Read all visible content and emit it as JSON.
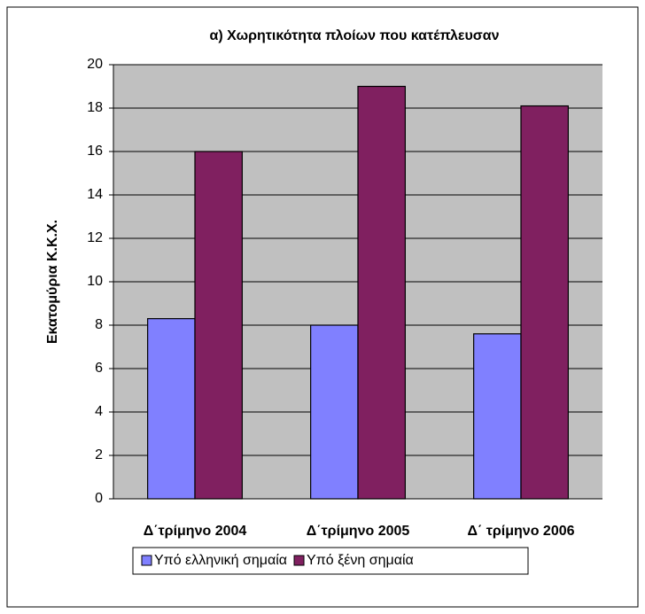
{
  "chart_data": {
    "type": "bar",
    "title": "α) Χωρητικότητα πλοίων που κατέπλευσαν",
    "y_label": "Εκατομύρια Κ.Κ.Χ.",
    "categories": [
      "Δ΄τρίμηνο  2004",
      "Δ΄τρίμηνο 2005",
      "Δ΄ τρίμηνο 2006"
    ],
    "series": [
      {
        "name": "Υπό ελληνική σημαία",
        "color": "#8080ff",
        "values": [
          8.3,
          8.0,
          7.6
        ]
      },
      {
        "name": "Υπό ξένη σημαία",
        "color": "#802060",
        "values": [
          16.0,
          19.0,
          18.1
        ]
      }
    ],
    "ylim": [
      0,
      20
    ],
    "yticks": [
      0,
      2,
      4,
      6,
      8,
      10,
      12,
      14,
      16,
      18,
      20
    ],
    "grid": true,
    "legend": "bottom"
  }
}
